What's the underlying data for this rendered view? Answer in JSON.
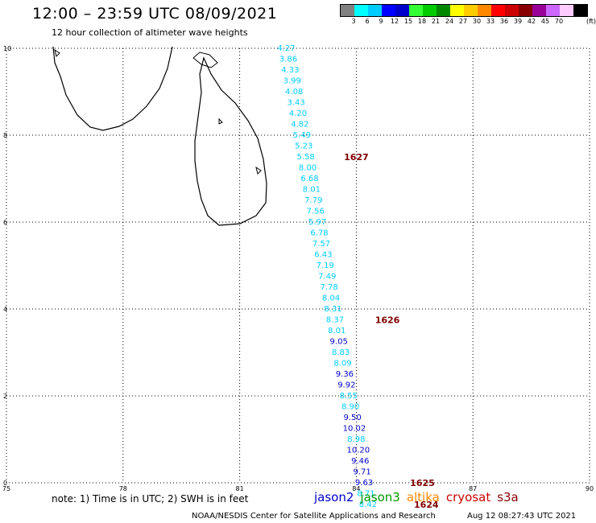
{
  "header": {
    "title": "12:00 – 23:59 UTC 08/09/2021",
    "subtitle": "12 hour collection of altimeter wave heights"
  },
  "colorbar": {
    "colors": [
      "#808080",
      "#00ffff",
      "#00ccff",
      "#0000ff",
      "#0000cc",
      "#33ff33",
      "#00cc00",
      "#008800",
      "#ffff00",
      "#ffcc00",
      "#ff8800",
      "#ff0000",
      "#cc0000",
      "#880000",
      "#990099",
      "#cc66ff",
      "#ffccff",
      "#000000"
    ],
    "labels": [
      "3",
      "6",
      "9",
      "12",
      "15",
      "18",
      "21",
      "24",
      "27",
      "30",
      "33",
      "36",
      "39",
      "42",
      "45",
      "70"
    ],
    "unit": "(ft)"
  },
  "map": {
    "lon_range": [
      75,
      90
    ],
    "lat_range": [
      0,
      10
    ],
    "x_ticks": [
      "75",
      "78",
      "81",
      "84",
      "87",
      "90"
    ],
    "y_ticks": [
      "0",
      "2",
      "4",
      "6",
      "8",
      "10"
    ],
    "grid": "dotted",
    "land_color": "#000000",
    "ocean_color": "#ffffff"
  },
  "track": {
    "points": [
      {
        "lat": 10.0,
        "lon": 82.2,
        "v": "4.27",
        "c": "#00ccff"
      },
      {
        "lat": 9.75,
        "lon": 82.25,
        "v": "3.86",
        "c": "#00ccff"
      },
      {
        "lat": 9.5,
        "lon": 82.3,
        "v": "4.33",
        "c": "#00ccff"
      },
      {
        "lat": 9.25,
        "lon": 82.35,
        "v": "3.99",
        "c": "#00ccff"
      },
      {
        "lat": 9.0,
        "lon": 82.4,
        "v": "4.08",
        "c": "#00ccff"
      },
      {
        "lat": 8.75,
        "lon": 82.45,
        "v": "3.43",
        "c": "#00ccff"
      },
      {
        "lat": 8.5,
        "lon": 82.5,
        "v": "4.20",
        "c": "#00ccff"
      },
      {
        "lat": 8.25,
        "lon": 82.55,
        "v": "4.82",
        "c": "#00ccff"
      },
      {
        "lat": 8.0,
        "lon": 82.6,
        "v": "5.49",
        "c": "#00ccff"
      },
      {
        "lat": 7.75,
        "lon": 82.65,
        "v": "5.23",
        "c": "#00ccff"
      },
      {
        "lat": 7.5,
        "lon": 82.7,
        "v": "5.58",
        "c": "#00ccff"
      },
      {
        "lat": 7.25,
        "lon": 82.75,
        "v": "8.00",
        "c": "#00ccff"
      },
      {
        "lat": 7.0,
        "lon": 82.8,
        "v": "6.68",
        "c": "#00ccff"
      },
      {
        "lat": 6.75,
        "lon": 82.85,
        "v": "8.01",
        "c": "#00ccff"
      },
      {
        "lat": 6.5,
        "lon": 82.9,
        "v": "7.79",
        "c": "#00ccff"
      },
      {
        "lat": 6.25,
        "lon": 82.95,
        "v": "7.56",
        "c": "#00ccff"
      },
      {
        "lat": 6.0,
        "lon": 83.0,
        "v": "5.97",
        "c": "#00ccff"
      },
      {
        "lat": 5.75,
        "lon": 83.05,
        "v": "6.78",
        "c": "#00ccff"
      },
      {
        "lat": 5.5,
        "lon": 83.1,
        "v": "7.57",
        "c": "#00ccff"
      },
      {
        "lat": 5.25,
        "lon": 83.15,
        "v": "6.43",
        "c": "#00ccff"
      },
      {
        "lat": 5.0,
        "lon": 83.2,
        "v": "7.19",
        "c": "#00ccff"
      },
      {
        "lat": 4.75,
        "lon": 83.25,
        "v": "7.49",
        "c": "#00ccff"
      },
      {
        "lat": 4.5,
        "lon": 83.3,
        "v": "7.78",
        "c": "#00ccff"
      },
      {
        "lat": 4.25,
        "lon": 83.35,
        "v": "8.04",
        "c": "#00ccff"
      },
      {
        "lat": 4.0,
        "lon": 83.4,
        "v": "8.31",
        "c": "#00ccff"
      },
      {
        "lat": 3.75,
        "lon": 83.45,
        "v": "8.37",
        "c": "#00ccff"
      },
      {
        "lat": 3.5,
        "lon": 83.5,
        "v": "8.01",
        "c": "#00ccff"
      },
      {
        "lat": 3.25,
        "lon": 83.55,
        "v": "9.05",
        "c": "#0000cc"
      },
      {
        "lat": 3.0,
        "lon": 83.6,
        "v": "8.83",
        "c": "#00ccff"
      },
      {
        "lat": 2.75,
        "lon": 83.65,
        "v": "8.09",
        "c": "#00ccff"
      },
      {
        "lat": 2.5,
        "lon": 83.7,
        "v": "9.36",
        "c": "#0000cc"
      },
      {
        "lat": 2.25,
        "lon": 83.75,
        "v": "9.92",
        "c": "#0000cc"
      },
      {
        "lat": 2.0,
        "lon": 83.8,
        "v": "8.55",
        "c": "#00ccff"
      },
      {
        "lat": 1.75,
        "lon": 83.85,
        "v": "8.90",
        "c": "#00ccff"
      },
      {
        "lat": 1.5,
        "lon": 83.9,
        "v": "9.50",
        "c": "#0000cc"
      },
      {
        "lat": 1.25,
        "lon": 83.95,
        "v": "10.02",
        "c": "#0000cc"
      },
      {
        "lat": 1.0,
        "lon": 84.0,
        "v": "8.98",
        "c": "#00ccff"
      },
      {
        "lat": 0.75,
        "lon": 84.05,
        "v": "10.20",
        "c": "#0000cc"
      },
      {
        "lat": 0.5,
        "lon": 84.1,
        "v": "9.46",
        "c": "#0000cc"
      },
      {
        "lat": 0.25,
        "lon": 84.15,
        "v": "9.71",
        "c": "#0000cc"
      },
      {
        "lat": 0.0,
        "lon": 84.2,
        "v": "9.63",
        "c": "#0000cc"
      },
      {
        "lat": -0.25,
        "lon": 84.25,
        "v": "8.71",
        "c": "#00ccff"
      },
      {
        "lat": -0.5,
        "lon": 84.3,
        "v": "8.42",
        "c": "#00ccff"
      }
    ],
    "time_labels": [
      {
        "lat": 7.5,
        "lon": 84.0,
        "t": "1627"
      },
      {
        "lat": 3.75,
        "lon": 84.8,
        "t": "1626"
      },
      {
        "lat": 0.0,
        "lon": 85.7,
        "t": "1625"
      },
      {
        "lat": -0.5,
        "lon": 85.8,
        "t": "1624"
      }
    ]
  },
  "footer": {
    "note": "note: 1) Time is in UTC; 2) SWH is in feet",
    "satellites": [
      {
        "name": "jason2",
        "color": "#0000cc"
      },
      {
        "name": "jason3",
        "color": "#009900"
      },
      {
        "name": "altika",
        "color": "#ff8800"
      },
      {
        "name": "cryosat",
        "color": "#cc0000"
      },
      {
        "name": "s3a",
        "color": "#880000"
      }
    ],
    "credit": "NOAA/NESDIS Center for Satellite Applications and Research",
    "timestamp": "Aug 12 08:27:43 UTC 2021"
  }
}
